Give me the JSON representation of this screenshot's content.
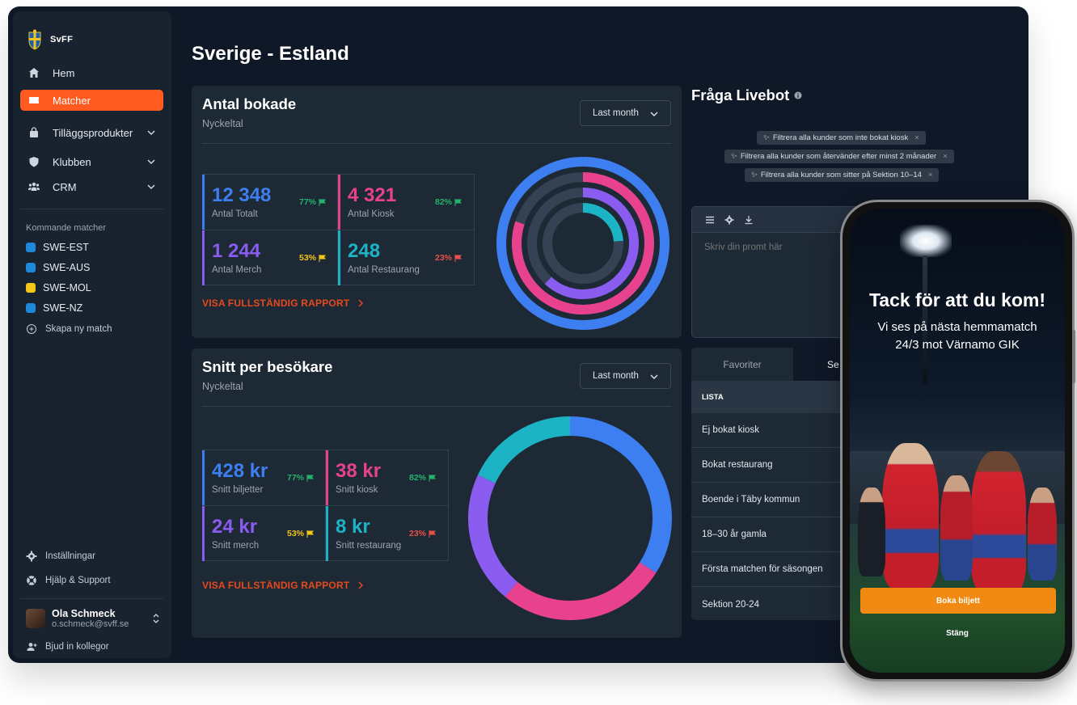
{
  "brand": {
    "name": "SvFF"
  },
  "nav": [
    {
      "label": "Hem",
      "icon": "home-icon"
    },
    {
      "label": "Matcher",
      "icon": "ticket-icon"
    },
    {
      "label": "Tilläggsprodukter",
      "icon": "bag-icon"
    },
    {
      "label": "Klubben",
      "icon": "shield-icon"
    },
    {
      "label": "CRM",
      "icon": "users-icon"
    }
  ],
  "upcoming": {
    "heading": "Kommande matcher",
    "matches": [
      {
        "label": "SWE-EST",
        "color": "#1e88d9"
      },
      {
        "label": "SWE-AUS",
        "color": "#1e88d9"
      },
      {
        "label": "SWE-MOL",
        "color": "#f5c518"
      },
      {
        "label": "SWE-NZ",
        "color": "#1e88d9"
      }
    ],
    "create_label": "Skapa ny match"
  },
  "footer": {
    "settings": "Inställningar",
    "help": "Hjälp & Support",
    "user_name": "Ola Schmeck",
    "user_email": "o.schmeck@svff.se",
    "invite": "Bjud in kollegor"
  },
  "page": {
    "title": "Sverige - Estland"
  },
  "card1": {
    "title": "Antal bokade",
    "subtitle": "Nyckeltal",
    "period": "Last month",
    "link": "VISA FULLSTÄNDIG RAPPORT",
    "kpis": [
      {
        "value": "12 348",
        "label": "Antal Totalt",
        "pct": "77%",
        "color": "#3d7ef0",
        "pct_color": "#23b46b"
      },
      {
        "value": "4 321",
        "label": "Antal Kiosk",
        "pct": "82%",
        "color": "#e8428f",
        "pct_color": "#23b46b"
      },
      {
        "value": "1 244",
        "label": "Antal Merch",
        "pct": "53%",
        "color": "#8a5cf0",
        "pct_color": "#f5c518"
      },
      {
        "value": "248",
        "label": "Antal Restaurang",
        "pct": "23%",
        "color": "#1cb3c4",
        "pct_color": "#e8504a"
      }
    ]
  },
  "card2": {
    "title": "Snitt per besökare",
    "subtitle": "Nyckeltal",
    "period": "Last month",
    "link": "VISA FULLSTÄNDIG RAPPORT",
    "kpis": [
      {
        "value": "428 kr",
        "label": "Snitt biljetter",
        "pct": "77%",
        "color": "#3d7ef0",
        "pct_color": "#23b46b"
      },
      {
        "value": "38 kr",
        "label": "Snitt kiosk",
        "pct": "82%",
        "color": "#e8428f",
        "pct_color": "#23b46b"
      },
      {
        "value": "24 kr",
        "label": "Snitt merch",
        "pct": "53%",
        "color": "#8a5cf0",
        "pct_color": "#f5c518"
      },
      {
        "value": "8 kr",
        "label": "Snitt restaurang",
        "pct": "23%",
        "color": "#1cb3c4",
        "pct_color": "#e8504a"
      }
    ]
  },
  "chart_data": [
    {
      "type": "pie",
      "title": "Antal bokade",
      "style": "concentric-radial",
      "series": [
        {
          "name": "Antal Totalt",
          "value": 100,
          "color": "#3d7ef0"
        },
        {
          "name": "Antal Kiosk",
          "value": 80,
          "color": "#e8428f"
        },
        {
          "name": "Antal Merch",
          "value": 62,
          "color": "#8a5cf0"
        },
        {
          "name": "Antal Restaurang",
          "value": 24,
          "color": "#1cb3c4"
        }
      ]
    },
    {
      "type": "pie",
      "title": "Snitt per besökare",
      "style": "donut",
      "series": [
        {
          "name": "Snitt biljetter",
          "value": 34,
          "color": "#3d7ef0"
        },
        {
          "name": "Snitt kiosk",
          "value": 27,
          "color": "#e8428f"
        },
        {
          "name": "Snitt merch",
          "value": 21,
          "color": "#8a5cf0"
        },
        {
          "name": "Snitt restaurang",
          "value": 18,
          "color": "#1cb3c4"
        }
      ]
    }
  ],
  "livebot": {
    "title": "Fråga Livebot",
    "chips": [
      "Filtrera alla kunder som inte bokat kiosk",
      "Filtrera alla kunder som återvänder efter minst 2 månader",
      "Filtrera alla kunder som sitter på Sektion 10–14"
    ],
    "prompt_placeholder": "Skriv din promt här"
  },
  "segments": {
    "tabs": [
      "Favoriter",
      "Se"
    ],
    "list_header": "LISTA",
    "rows": [
      "Ej bokat kiosk",
      "Bokat restaurang",
      "Boende i Täby kommun",
      "18–30 år gamla",
      "Första matchen för säsongen",
      "Sektion 20-24"
    ]
  },
  "phone": {
    "title": "Tack för att du kom!",
    "subtitle_line1": "Vi ses på nästa hemmamatch",
    "subtitle_line2": "24/3 mot Värnamo GIK",
    "cta": "Boka biljett",
    "close": "Stäng"
  }
}
